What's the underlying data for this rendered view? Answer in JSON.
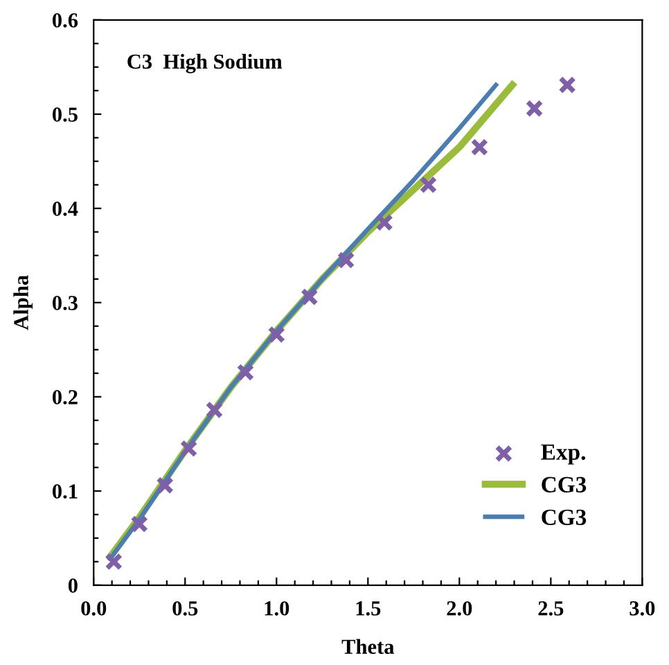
{
  "chart_data": {
    "type": "line",
    "xlabel": "Theta",
    "ylabel": "Alpha",
    "annotations": [
      "C3  High Sodium"
    ],
    "xlim": [
      0,
      3
    ],
    "ylim": [
      0,
      0.6
    ],
    "xticks": [
      {
        "value": 0,
        "label": "0.0"
      },
      {
        "value": 0.1,
        "label": null
      },
      {
        "value": 0.2,
        "label": null
      },
      {
        "value": 0.3,
        "label": null
      },
      {
        "value": 0.4,
        "label": null
      },
      {
        "value": 0.5,
        "label": "0.5"
      },
      {
        "value": 0.6,
        "label": null
      },
      {
        "value": 0.7,
        "label": null
      },
      {
        "value": 0.8,
        "label": null
      },
      {
        "value": 0.9,
        "label": null
      },
      {
        "value": 1.0,
        "label": "1.0"
      },
      {
        "value": 1.1,
        "label": null
      },
      {
        "value": 1.2,
        "label": null
      },
      {
        "value": 1.3,
        "label": null
      },
      {
        "value": 1.4,
        "label": null
      },
      {
        "value": 1.5,
        "label": "1.5"
      },
      {
        "value": 1.6,
        "label": null
      },
      {
        "value": 1.7,
        "label": null
      },
      {
        "value": 1.8,
        "label": null
      },
      {
        "value": 1.9,
        "label": null
      },
      {
        "value": 2.0,
        "label": "2.0"
      },
      {
        "value": 2.1,
        "label": null
      },
      {
        "value": 2.2,
        "label": null
      },
      {
        "value": 2.3,
        "label": null
      },
      {
        "value": 2.4,
        "label": null
      },
      {
        "value": 2.5,
        "label": "2.5"
      },
      {
        "value": 2.6,
        "label": null
      },
      {
        "value": 2.7,
        "label": null
      },
      {
        "value": 2.8,
        "label": null
      },
      {
        "value": 2.9,
        "label": null
      },
      {
        "value": 3.0,
        "label": "3.0"
      }
    ],
    "yticks": [
      0,
      {
        "value": 0.025,
        "label": null
      },
      {
        "value": 0.05,
        "label": null
      },
      {
        "value": 0.075,
        "label": null
      },
      0.1,
      {
        "value": 0.125,
        "label": null
      },
      {
        "value": 0.15,
        "label": null
      },
      {
        "value": 0.175,
        "label": null
      },
      0.2,
      {
        "value": 0.225,
        "label": null
      },
      {
        "value": 0.25,
        "label": null
      },
      {
        "value": 0.275,
        "label": null
      },
      0.3,
      {
        "value": 0.325,
        "label": null
      },
      {
        "value": 0.35,
        "label": null
      },
      {
        "value": 0.375,
        "label": null
      },
      0.4,
      {
        "value": 0.425,
        "label": null
      },
      {
        "value": 0.45,
        "label": null
      },
      {
        "value": 0.475,
        "label": null
      },
      0.5,
      {
        "value": 0.525,
        "label": null
      },
      {
        "value": 0.55,
        "label": null
      },
      {
        "value": 0.575,
        "label": null
      },
      0.6
    ],
    "grid": false,
    "legend": "bottom right",
    "series": [
      {
        "name": "Exp.",
        "type": "scatter",
        "marker": "cross",
        "color": "#7f5fa8",
        "x": [
          0.11,
          0.25,
          0.39,
          0.52,
          0.66,
          0.83,
          1.0,
          1.18,
          1.38,
          1.59,
          1.83,
          2.11,
          2.41,
          2.59
        ],
        "values": [
          0.025,
          0.065,
          0.106,
          0.145,
          0.186,
          0.226,
          0.266,
          0.306,
          0.345,
          0.385,
          0.425,
          0.465,
          0.506,
          0.531
        ]
      },
      {
        "name": "CG3",
        "type": "line",
        "color": "#9bbb3b",
        "x": [
          0.09,
          0.25,
          0.5,
          0.75,
          1.0,
          1.25,
          1.5,
          1.75,
          2.0,
          2.29
        ],
        "values": [
          0.03,
          0.072,
          0.143,
          0.21,
          0.27,
          0.325,
          0.375,
          0.42,
          0.465,
          0.531
        ]
      },
      {
        "name": "CG3",
        "type": "line",
        "color": "#4a7eb0",
        "x": [
          0.09,
          0.25,
          0.5,
          0.75,
          1.0,
          1.25,
          1.5,
          1.75,
          2.0,
          2.2
        ],
        "values": [
          0.028,
          0.07,
          0.142,
          0.21,
          0.27,
          0.325,
          0.378,
          0.43,
          0.485,
          0.531
        ]
      }
    ]
  }
}
